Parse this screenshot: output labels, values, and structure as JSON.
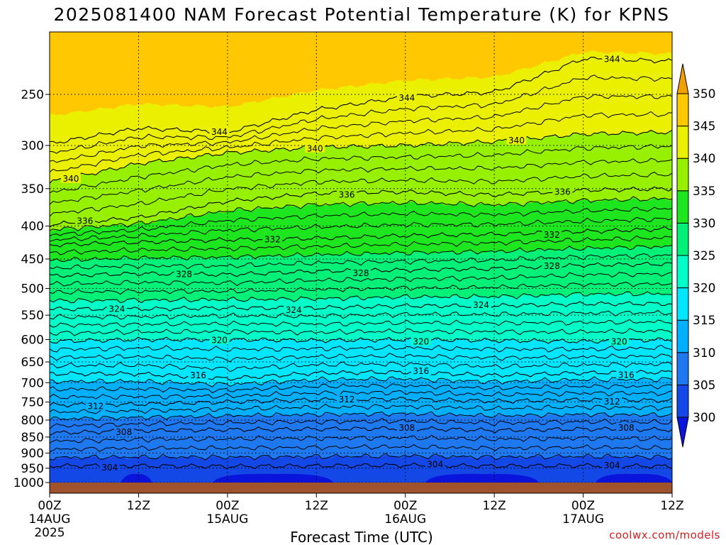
{
  "title": "2025081400 NAM Forecast Potential Temperature (K) for KPNS",
  "xlabel": "Forecast Time (UTC)",
  "watermark": "coolwx.com/models",
  "colors": {
    "ground": "#a0522d",
    "contour": "#000000",
    "gridline": "#000000",
    "watermark": "#d02020"
  },
  "chart_data": {
    "type": "heatmap",
    "title": "2025081400 NAM Forecast Potential Temperature (K) for KPNS",
    "xlabel": "Forecast Time (UTC)",
    "ylabel": "",
    "y_scale": "log-pressure (hPa), inverted",
    "ylim": [
      1000,
      200
    ],
    "y_ticks": [
      250,
      300,
      350,
      400,
      450,
      500,
      550,
      600,
      650,
      700,
      750,
      800,
      850,
      900,
      950,
      1000
    ],
    "x_ticks": [
      {
        "hour": 0,
        "label": "00Z",
        "date": "14AUG",
        "year": "2025"
      },
      {
        "hour": 12,
        "label": "12Z",
        "date": "",
        "year": ""
      },
      {
        "hour": 24,
        "label": "00Z",
        "date": "15AUG",
        "year": ""
      },
      {
        "hour": 36,
        "label": "12Z",
        "date": "",
        "year": ""
      },
      {
        "hour": 48,
        "label": "00Z",
        "date": "16AUG",
        "year": ""
      },
      {
        "hour": 60,
        "label": "12Z",
        "date": "",
        "year": ""
      },
      {
        "hour": 72,
        "label": "00Z",
        "date": "17AUG",
        "year": ""
      },
      {
        "hour": 84,
        "label": "12Z",
        "date": "",
        "year": ""
      }
    ],
    "xlim": [
      0,
      84
    ],
    "grid": true,
    "colorbar": {
      "levels": [
        300,
        305,
        310,
        315,
        320,
        325,
        330,
        335,
        340,
        345,
        350
      ],
      "colors": [
        "#0a14dc",
        "#1448e6",
        "#1e78f0",
        "#00b0ff",
        "#00e6ff",
        "#00ffc8",
        "#00f078",
        "#1ee61e",
        "#96f000",
        "#eaf000",
        "#ffc800",
        "#f0a000"
      ],
      "extend": "both",
      "placement": "right"
    },
    "series": [
      {
        "theta": 304,
        "pressure": [
          942,
          942,
          944,
          942,
          940,
          943,
          941,
          944
        ]
      },
      {
        "theta": 308,
        "pressure": [
          838,
          831,
          828,
          826,
          824,
          830,
          826,
          828
        ]
      },
      {
        "theta": 312,
        "pressure": [
          758,
          756,
          750,
          744,
          742,
          748,
          744,
          746
        ]
      },
      {
        "theta": 316,
        "pressure": [
          678,
          678,
          690,
          676,
          674,
          682,
          676,
          674
        ]
      },
      {
        "theta": 320,
        "pressure": [
          604,
          600,
          600,
          602,
          600,
          602,
          604,
          600
        ]
      },
      {
        "theta": 324,
        "pressure": [
          538,
          538,
          536,
          536,
          532,
          532,
          528,
          528
        ]
      },
      {
        "theta": 328,
        "pressure": [
          478,
          474,
          476,
          470,
          468,
          466,
          460,
          458
        ]
      },
      {
        "theta": 332,
        "pressure": [
          428,
          424,
          420,
          418,
          414,
          412,
          408,
          404
        ]
      },
      {
        "theta": 336,
        "pressure": [
          398,
          388,
          366,
          356,
          354,
          358,
          352,
          350
        ]
      },
      {
        "theta": 340,
        "pressure": [
          342,
          320,
          308,
          302,
          300,
          296,
          288,
          286
        ]
      },
      {
        "theta": 344,
        "pressure": [
          298,
          282,
          286,
          264,
          252,
          248,
          220,
          222
        ]
      }
    ]
  }
}
